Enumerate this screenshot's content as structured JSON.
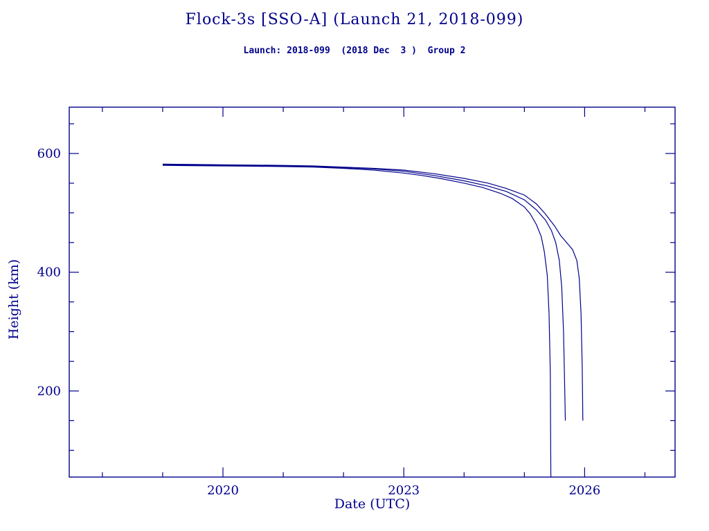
{
  "colors": {
    "ink": "#00008b",
    "background": "#ffffff"
  },
  "chart_data": {
    "type": "line",
    "title": "Flock-3s [SSO-A] (Launch 21, 2018-099)",
    "subtitle": "Launch: 2018-099  (2018 Dec  3 )  Group 2",
    "xlabel": "Date (UTC)",
    "ylabel": "Height (km)",
    "xlim": [
      2017.45,
      2027.5
    ],
    "ylim": [
      55,
      678
    ],
    "x_major_ticks": [
      2020,
      2023,
      2026
    ],
    "x_major_tick_labels": [
      "2020",
      "2023",
      "2026"
    ],
    "x_minor_ticks": [
      2018,
      2019,
      2021,
      2022,
      2024,
      2025,
      2027
    ],
    "y_major_ticks": [
      200,
      400,
      600
    ],
    "y_major_tick_labels": [
      "200",
      "400",
      "600"
    ],
    "y_minor_ticks": [
      100,
      150,
      250,
      300,
      350,
      450,
      500,
      550,
      650
    ],
    "grid": false,
    "legend": null,
    "line_color": "#00008b",
    "series": [
      {
        "name": "line-1",
        "points": [
          [
            2019.0,
            580
          ],
          [
            2019.5,
            579.5
          ],
          [
            2020.0,
            579
          ],
          [
            2020.5,
            578.5
          ],
          [
            2021.0,
            578
          ],
          [
            2021.5,
            577
          ],
          [
            2022.0,
            575
          ],
          [
            2022.5,
            572
          ],
          [
            2023.0,
            567
          ],
          [
            2023.3,
            563
          ],
          [
            2023.6,
            558
          ],
          [
            2024.0,
            550
          ],
          [
            2024.3,
            543
          ],
          [
            2024.6,
            533
          ],
          [
            2024.8,
            524
          ],
          [
            2025.0,
            510
          ],
          [
            2025.1,
            498
          ],
          [
            2025.2,
            480
          ],
          [
            2025.28,
            460
          ],
          [
            2025.33,
            435
          ],
          [
            2025.38,
            395
          ],
          [
            2025.41,
            330
          ],
          [
            2025.43,
            230
          ],
          [
            2025.44,
            55
          ]
        ]
      },
      {
        "name": "line-2",
        "points": [
          [
            2019.0,
            581
          ],
          [
            2019.5,
            580.5
          ],
          [
            2020.0,
            580
          ],
          [
            2021.0,
            579
          ],
          [
            2021.5,
            578
          ],
          [
            2022.0,
            576
          ],
          [
            2022.5,
            574
          ],
          [
            2023.0,
            570
          ],
          [
            2023.5,
            563
          ],
          [
            2024.0,
            554
          ],
          [
            2024.4,
            545
          ],
          [
            2024.7,
            536
          ],
          [
            2025.0,
            522
          ],
          [
            2025.2,
            505
          ],
          [
            2025.35,
            488
          ],
          [
            2025.45,
            470
          ],
          [
            2025.52,
            450
          ],
          [
            2025.58,
            420
          ],
          [
            2025.62,
            375
          ],
          [
            2025.65,
            300
          ],
          [
            2025.67,
            200
          ],
          [
            2025.68,
            150
          ]
        ]
      },
      {
        "name": "line-3",
        "points": [
          [
            2019.0,
            582
          ],
          [
            2019.5,
            581.5
          ],
          [
            2020.0,
            581
          ],
          [
            2021.0,
            580
          ],
          [
            2021.5,
            579
          ],
          [
            2022.0,
            577
          ],
          [
            2022.5,
            575
          ],
          [
            2023.0,
            572
          ],
          [
            2023.5,
            566
          ],
          [
            2024.0,
            558
          ],
          [
            2024.4,
            550
          ],
          [
            2024.7,
            541
          ],
          [
            2025.0,
            530
          ],
          [
            2025.2,
            515
          ],
          [
            2025.35,
            498
          ],
          [
            2025.5,
            478
          ],
          [
            2025.6,
            462
          ],
          [
            2025.7,
            450
          ],
          [
            2025.8,
            438
          ],
          [
            2025.87,
            420
          ],
          [
            2025.91,
            390
          ],
          [
            2025.94,
            330
          ],
          [
            2025.96,
            240
          ],
          [
            2025.97,
            150
          ]
        ]
      }
    ]
  }
}
